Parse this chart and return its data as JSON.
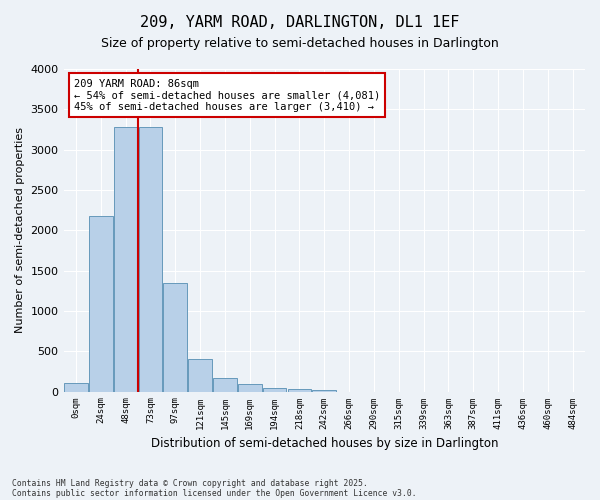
{
  "title": "209, YARM ROAD, DARLINGTON, DL1 1EF",
  "subtitle": "Size of property relative to semi-detached houses in Darlington",
  "xlabel": "Distribution of semi-detached houses by size in Darlington",
  "ylabel": "Number of semi-detached properties",
  "footnote1": "Contains HM Land Registry data © Crown copyright and database right 2025.",
  "footnote2": "Contains public sector information licensed under the Open Government Licence v3.0.",
  "bin_labels": [
    "0sqm",
    "24sqm",
    "48sqm",
    "73sqm",
    "97sqm",
    "121sqm",
    "145sqm",
    "169sqm",
    "194sqm",
    "218sqm",
    "242sqm",
    "266sqm",
    "290sqm",
    "315sqm",
    "339sqm",
    "363sqm",
    "387sqm",
    "411sqm",
    "436sqm",
    "460sqm",
    "484sqm"
  ],
  "bar_values": [
    110,
    2180,
    3280,
    3280,
    1340,
    400,
    170,
    90,
    50,
    30,
    20,
    0,
    0,
    0,
    0,
    0,
    0,
    0,
    0,
    0,
    0
  ],
  "bar_color": "#b8d0e8",
  "bar_edge_color": "#6699bb",
  "vline_x_index": 3,
  "vline_color": "#cc0000",
  "annotation_text": "209 YARM ROAD: 86sqm\n← 54% of semi-detached houses are smaller (4,081)\n45% of semi-detached houses are larger (3,410) →",
  "annotation_box_color": "#ffffff",
  "annotation_box_edge": "#cc0000",
  "ylim": [
    0,
    4000
  ],
  "yticks": [
    0,
    500,
    1000,
    1500,
    2000,
    2500,
    3000,
    3500,
    4000
  ],
  "background_color": "#edf2f7",
  "plot_bg_color": "#edf2f7"
}
